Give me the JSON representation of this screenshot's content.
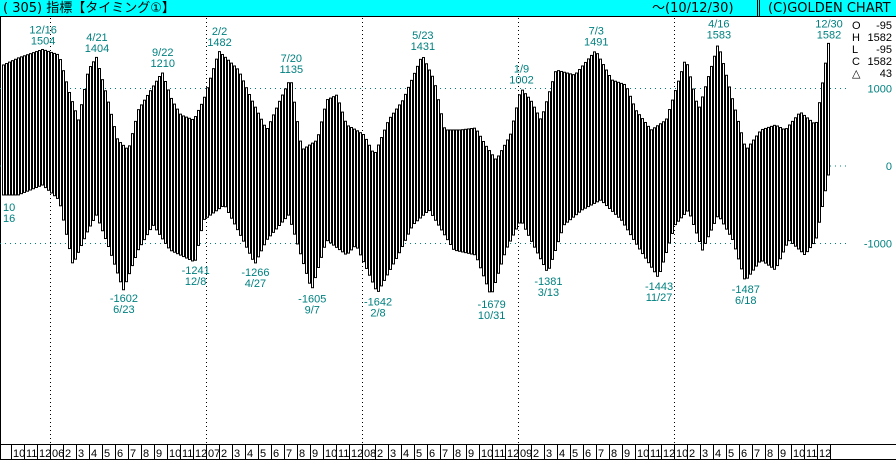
{
  "header": {
    "title": "( 305)  指標【タイミング①】",
    "date_range": "～(10/12/30)",
    "copyright": "(C)GOLDEN CHART"
  },
  "ohlc": [
    {
      "label": "O",
      "value": "-95"
    },
    {
      "label": "H",
      "value": "1582"
    },
    {
      "label": "L",
      "value": "-95"
    },
    {
      "label": "C",
      "value": "1582"
    },
    {
      "label": "△",
      "value": "43"
    }
  ],
  "colors": {
    "header_bg": "#00ffff",
    "label": "#008080",
    "bar_outline": "#000000",
    "bar_fill": "#ffffff",
    "grid": "#008080"
  },
  "chart_data": {
    "type": "bar",
    "subtype": "weekly high-low range bars",
    "y_ticks": [
      1000,
      0,
      -1000
    ],
    "y_tick_labels": [
      "1000",
      "0",
      "-1000"
    ],
    "grid": "dotted horizontal at ticks, dotted vertical at year starts",
    "x_month_labels": [
      "10",
      "11",
      "12",
      "06",
      "2",
      "3",
      "4",
      "5",
      "6",
      "7",
      "8",
      "9",
      "10",
      "11",
      "12",
      "07",
      "2",
      "3",
      "4",
      "5",
      "6",
      "7",
      "8",
      "9",
      "10",
      "11",
      "12",
      "08",
      "2",
      "3",
      "4",
      "5",
      "6",
      "7",
      "8",
      "9",
      "10",
      "11",
      "12",
      "09",
      "2",
      "3",
      "4",
      "5",
      "6",
      "7",
      "8",
      "9",
      "10",
      "11",
      "12",
      "10",
      "2",
      "3",
      "4",
      "5",
      "6",
      "7",
      "8",
      "9",
      "10",
      "11",
      "12"
    ],
    "high_envelope": [
      [
        "2005-09-15",
        1303
      ],
      [
        "2005-10-20",
        1394
      ],
      [
        "2005-12-16",
        1504
      ],
      [
        "2006-01-24",
        1432
      ],
      [
        "2006-02-15",
        981
      ],
      [
        "2006-03-10",
        594
      ],
      [
        "2006-04-02",
        1239
      ],
      [
        "2006-04-21",
        1404
      ],
      [
        "2006-05-18",
        852
      ],
      [
        "2006-06-10",
        335
      ],
      [
        "2006-07-05",
        206
      ],
      [
        "2006-07-28",
        723
      ],
      [
        "2006-09-22",
        1210
      ],
      [
        "2006-10-15",
        852
      ],
      [
        "2006-11-05",
        658
      ],
      [
        "2006-12-05",
        594
      ],
      [
        "2006-12-28",
        852
      ],
      [
        "2007-02-02",
        1482
      ],
      [
        "2007-03-20",
        1239
      ],
      [
        "2007-04-20",
        852
      ],
      [
        "2007-05-25",
        465
      ],
      [
        "2007-06-25",
        852
      ],
      [
        "2007-07-20",
        1135
      ],
      [
        "2007-08-15",
        206
      ],
      [
        "2007-09-20",
        335
      ],
      [
        "2007-10-12",
        852
      ],
      [
        "2007-11-05",
        916
      ],
      [
        "2007-11-28",
        529
      ],
      [
        "2007-12-20",
        465
      ],
      [
        "2008-01-08",
        400
      ],
      [
        "2008-02-01",
        142
      ],
      [
        "2008-03-05",
        594
      ],
      [
        "2008-04-08",
        852
      ],
      [
        "2008-05-23",
        1431
      ],
      [
        "2008-06-20",
        1110
      ],
      [
        "2008-07-15",
        465
      ],
      [
        "2008-08-20",
        465
      ],
      [
        "2008-09-25",
        490
      ],
      [
        "2008-10-18",
        271
      ],
      [
        "2008-11-12",
        77
      ],
      [
        "2008-12-15",
        400
      ],
      [
        "2009-01-09",
        1002
      ],
      [
        "2009-02-01",
        852
      ],
      [
        "2009-02-25",
        594
      ],
      [
        "2009-04-01",
        1239
      ],
      [
        "2009-05-15",
        1174
      ],
      [
        "2009-07-03",
        1491
      ],
      [
        "2009-08-10",
        1110
      ],
      [
        "2009-09-12",
        1045
      ],
      [
        "2009-10-05",
        723
      ],
      [
        "2009-11-10",
        465
      ],
      [
        "2009-12-15",
        594
      ],
      [
        "2010-01-30",
        1394
      ],
      [
        "2010-03-01",
        723
      ],
      [
        "2010-04-16",
        1583
      ],
      [
        "2010-05-20",
        852
      ],
      [
        "2010-06-20",
        206
      ],
      [
        "2010-07-25",
        465
      ],
      [
        "2010-08-28",
        529
      ],
      [
        "2010-09-20",
        465
      ],
      [
        "2010-10-25",
        697
      ],
      [
        "2010-12-01",
        529
      ],
      [
        "2010-12-30",
        1582
      ]
    ],
    "low_envelope": [
      [
        "2005-09-15",
        -374
      ],
      [
        "2005-10-20",
        -374
      ],
      [
        "2005-12-16",
        -245
      ],
      [
        "2006-01-24",
        -439
      ],
      [
        "2006-02-25",
        -1277
      ],
      [
        "2006-04-02",
        -826
      ],
      [
        "2006-04-21",
        -632
      ],
      [
        "2006-05-18",
        -1019
      ],
      [
        "2006-06-23",
        -1602
      ],
      [
        "2006-07-28",
        -1084
      ],
      [
        "2006-09-01",
        -761
      ],
      [
        "2006-10-10",
        -1084
      ],
      [
        "2006-12-08",
        -1241
      ],
      [
        "2006-12-28",
        -697
      ],
      [
        "2007-02-15",
        -503
      ],
      [
        "2007-03-30",
        -955
      ],
      [
        "2007-04-27",
        -1266
      ],
      [
        "2007-05-25",
        -955
      ],
      [
        "2007-07-15",
        -632
      ],
      [
        "2007-09-07",
        -1605
      ],
      [
        "2007-10-12",
        -955
      ],
      [
        "2007-11-28",
        -1148
      ],
      [
        "2007-12-20",
        -1019
      ],
      [
        "2008-02-08",
        -1642
      ],
      [
        "2008-03-28",
        -1148
      ],
      [
        "2008-05-01",
        -761
      ],
      [
        "2008-06-08",
        -568
      ],
      [
        "2008-08-05",
        -1084
      ],
      [
        "2008-09-25",
        -1148
      ],
      [
        "2008-10-31",
        -1679
      ],
      [
        "2008-12-05",
        -1084
      ],
      [
        "2009-01-09",
        -697
      ],
      [
        "2009-02-01",
        -955
      ],
      [
        "2009-03-13",
        -1381
      ],
      [
        "2009-04-20",
        -761
      ],
      [
        "2009-06-01",
        -568
      ],
      [
        "2009-07-15",
        -439
      ],
      [
        "2009-09-01",
        -697
      ],
      [
        "2009-10-15",
        -1084
      ],
      [
        "2009-11-27",
        -1443
      ],
      [
        "2010-01-05",
        -761
      ],
      [
        "2010-02-05",
        -568
      ],
      [
        "2010-03-10",
        -1084
      ],
      [
        "2010-04-16",
        -632
      ],
      [
        "2010-05-20",
        -955
      ],
      [
        "2010-06-18",
        -1487
      ],
      [
        "2010-07-25",
        -1213
      ],
      [
        "2010-08-28",
        -1342
      ],
      [
        "2010-09-28",
        -955
      ],
      [
        "2010-11-05",
        -1148
      ],
      [
        "2010-12-01",
        -955
      ],
      [
        "2010-12-30",
        -116
      ]
    ],
    "annotations": [
      {
        "kind": "peak",
        "date": "2005-12-16",
        "label_date": "12/16",
        "label_value": "1504",
        "value": 1504
      },
      {
        "kind": "peak",
        "date": "2006-04-21",
        "label_date": "4/21",
        "label_value": "1404",
        "value": 1404
      },
      {
        "kind": "peak",
        "date": "2006-09-22",
        "label_date": "9/22",
        "label_value": "1210",
        "value": 1210
      },
      {
        "kind": "peak",
        "date": "2007-02-02",
        "label_date": "2/2",
        "label_value": "1482",
        "value": 1482
      },
      {
        "kind": "peak",
        "date": "2007-07-20",
        "label_date": "7/20",
        "label_value": "1135",
        "value": 1135
      },
      {
        "kind": "peak",
        "date": "2008-05-23",
        "label_date": "5/23",
        "label_value": "1431",
        "value": 1431
      },
      {
        "kind": "peak",
        "date": "2009-01-09",
        "label_date": "1/9",
        "label_value": "1002",
        "value": 1002
      },
      {
        "kind": "peak",
        "date": "2009-07-03",
        "label_date": "7/3",
        "label_value": "1491",
        "value": 1491
      },
      {
        "kind": "peak",
        "date": "2010-04-16",
        "label_date": "4/16",
        "label_value": "1583",
        "value": 1583
      },
      {
        "kind": "peak",
        "date": "2010-12-30",
        "label_date": "12/30",
        "label_value": "1582",
        "value": 1582
      },
      {
        "kind": "trough",
        "date": "2006-06-23",
        "label_date": "6/23",
        "label_value": "-1602",
        "value": -1602
      },
      {
        "kind": "trough",
        "date": "2006-12-08",
        "label_date": "12/8",
        "label_value": "-1241",
        "value": -1241
      },
      {
        "kind": "trough",
        "date": "2007-04-27",
        "label_date": "4/27",
        "label_value": "-1266",
        "value": -1266
      },
      {
        "kind": "trough",
        "date": "2007-09-07",
        "label_date": "9/7",
        "label_value": "-1605",
        "value": -1605
      },
      {
        "kind": "trough",
        "date": "2008-02-08",
        "label_date": "2/8",
        "label_value": "-1642",
        "value": -1642
      },
      {
        "kind": "trough",
        "date": "2008-10-31",
        "label_date": "10/31",
        "label_value": "-1679",
        "value": -1679
      },
      {
        "kind": "trough",
        "date": "2009-03-13",
        "label_date": "3/13",
        "label_value": "-1381",
        "value": -1381
      },
      {
        "kind": "trough",
        "date": "2009-11-27",
        "label_date": "11/27",
        "label_value": "-1443",
        "value": -1443
      },
      {
        "kind": "trough",
        "date": "2010-06-18",
        "label_date": "6/18",
        "label_value": "-1487",
        "value": -1487
      }
    ],
    "partial_label_left": [
      "10",
      "16"
    ]
  }
}
